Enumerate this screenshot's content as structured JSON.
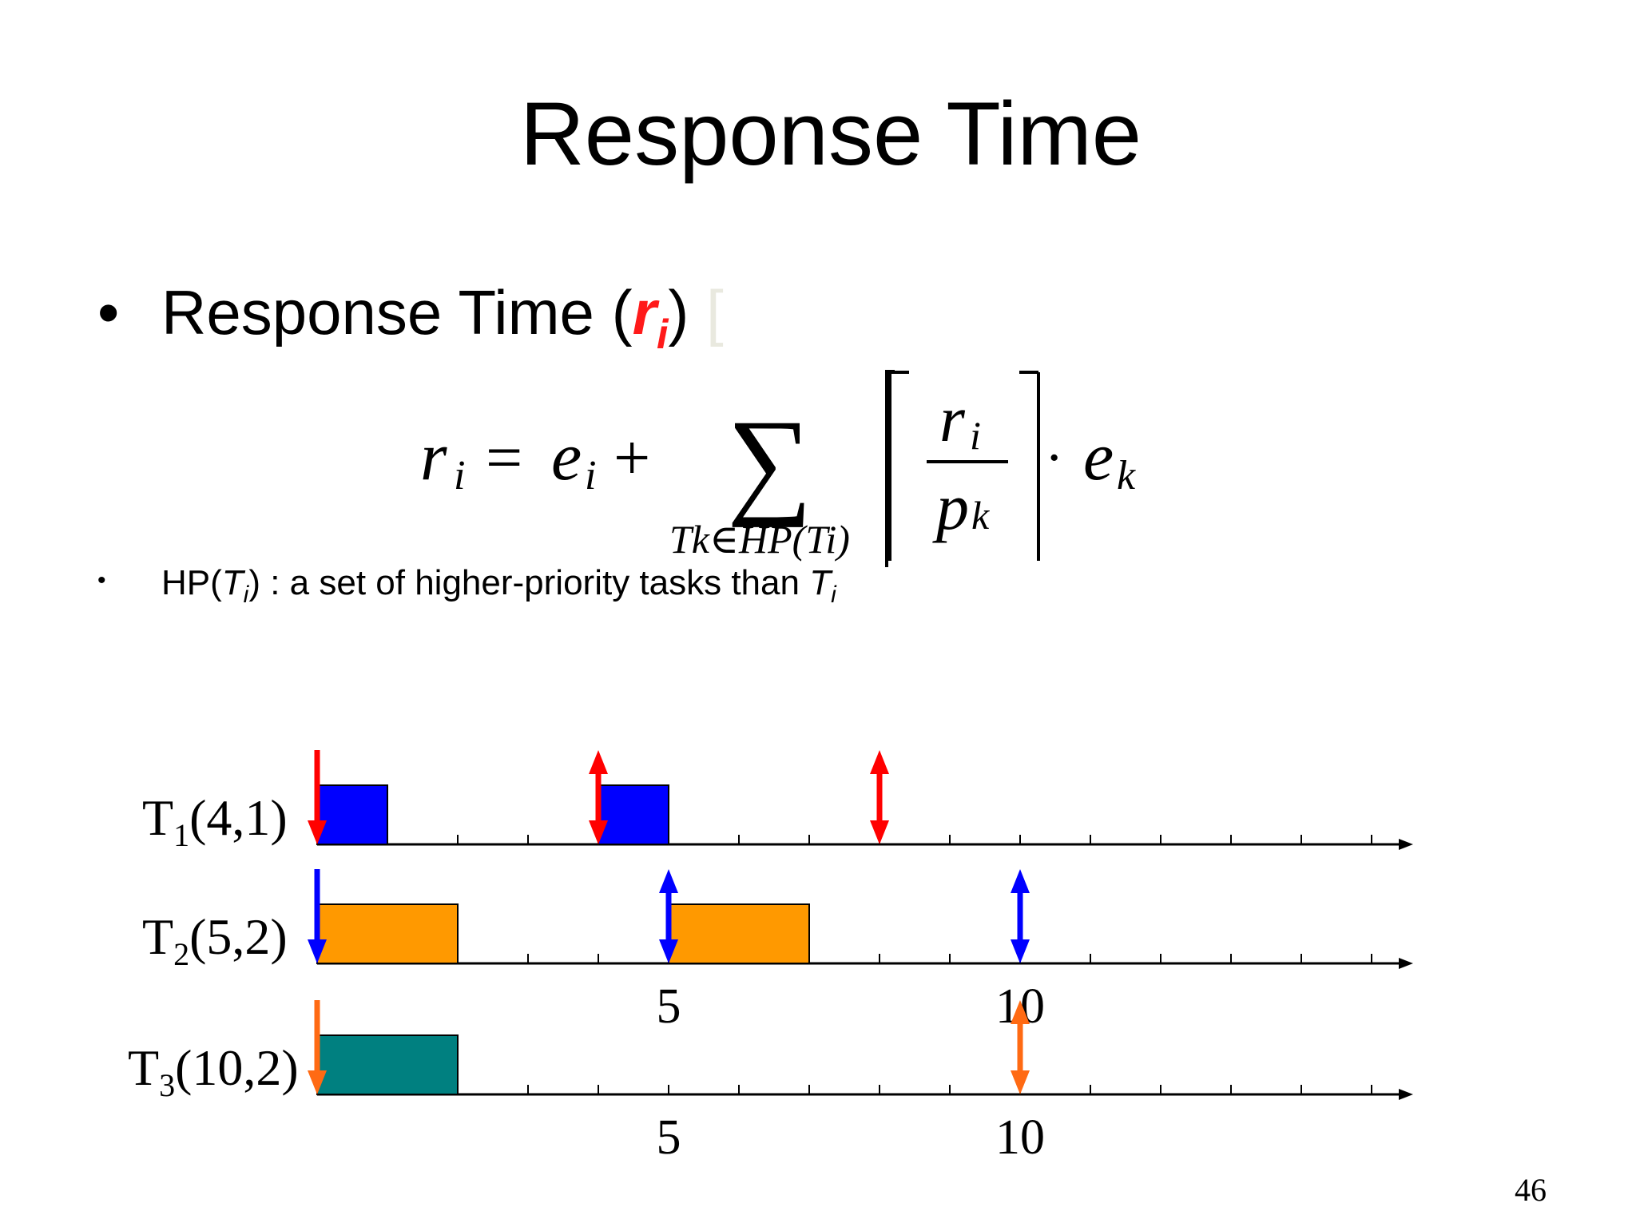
{
  "slide": {
    "title": "Response Time",
    "bullet1": {
      "label": "Response Time (",
      "symbol": "r",
      "symbol_sub": "i",
      "close": ")",
      "trailing": " ["
    },
    "formula": {
      "lhs": "r",
      "lhs_sub": "i",
      "equals": "=",
      "e": "e",
      "e_sub": "i",
      "plus": "+",
      "sum": "∑",
      "sum_index": "Tk∈HP(Ti)",
      "numerator": "r",
      "numerator_sub": "i",
      "denominator": "p",
      "denominator_sub": "k",
      "dot": "·",
      "ek": "e",
      "ek_sub": "k"
    },
    "bullet2": {
      "prefix": "HP(",
      "T": "T",
      "sub": "i",
      "middle": ") : a set of higher-priority tasks than ",
      "T2": "T",
      "sub2": "i"
    },
    "page_number": "46"
  },
  "schedule": {
    "colors": {
      "T1": "#0000ff",
      "T2": "#ff9900",
      "T3": "#008080",
      "arrow_T1": "#ff0000",
      "arrow_T2": "#0000ff",
      "arrow_T3": "#ff6a13"
    },
    "axis_ticks": 15,
    "tasks": [
      {
        "name": "T1(4,1)",
        "label": "T",
        "sub": "1",
        "params": "(4,1)",
        "period": 4,
        "exec": 1,
        "jobs": [
          {
            "start": 0,
            "end": 1
          },
          {
            "start": 4,
            "end": 5
          }
        ],
        "releases": [
          0,
          4,
          8
        ],
        "tick_labels": []
      },
      {
        "name": "T2(5,2)",
        "label": "T",
        "sub": "2",
        "params": "(5,2)",
        "period": 5,
        "exec": 2,
        "jobs": [
          {
            "start": 0,
            "end": 2
          },
          {
            "start": 5,
            "end": 7
          }
        ],
        "releases": [
          0,
          5,
          10
        ],
        "tick_labels": [
          "5",
          "10"
        ]
      },
      {
        "name": "T3(10,2)",
        "label": "T",
        "sub": "3",
        "params": "(10,2)",
        "period": 10,
        "exec": 2,
        "jobs": [
          {
            "start": 0,
            "end": 2
          }
        ],
        "releases": [
          0,
          10
        ],
        "tick_labels": [
          "5",
          "10"
        ]
      }
    ]
  }
}
